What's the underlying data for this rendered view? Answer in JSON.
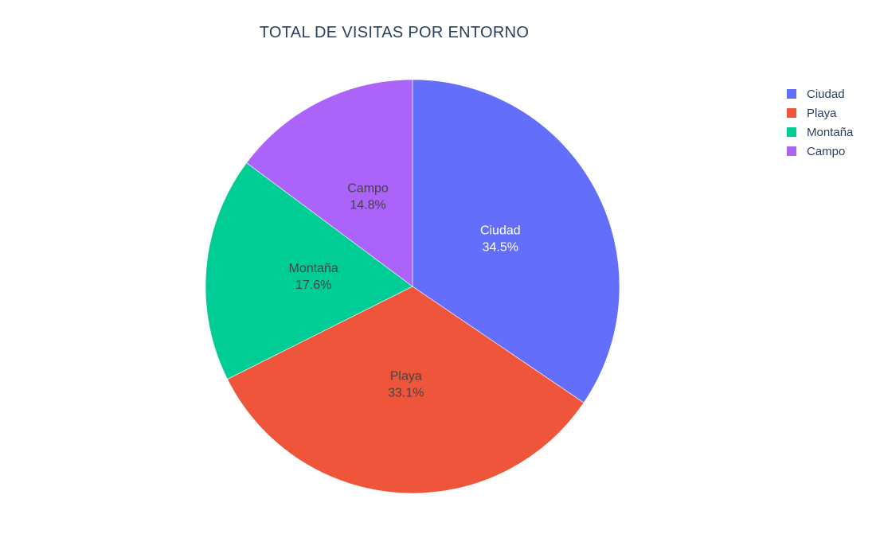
{
  "chart_data": {
    "type": "pie",
    "title": "TOTAL DE VISITAS POR ENTORNO",
    "slices": [
      {
        "label": "Ciudad",
        "percent": 34.5,
        "percent_label": "34.5%",
        "color": "#636efa",
        "text_color": "#ffffff"
      },
      {
        "label": "Playa",
        "percent": 33.1,
        "percent_label": "33.1%",
        "color": "#ef553b",
        "text_color": "#444444"
      },
      {
        "label": "Montaña",
        "percent": 17.6,
        "percent_label": "17.6%",
        "color": "#00cc96",
        "text_color": "#444444"
      },
      {
        "label": "Campo",
        "percent": 14.8,
        "percent_label": "14.8%",
        "color": "#ab63fa",
        "text_color": "#444444"
      }
    ],
    "legend_order": [
      "Ciudad",
      "Playa",
      "Montaña",
      "Campo"
    ],
    "legend_position": "top-right",
    "direction": "clockwise",
    "start": "top"
  }
}
